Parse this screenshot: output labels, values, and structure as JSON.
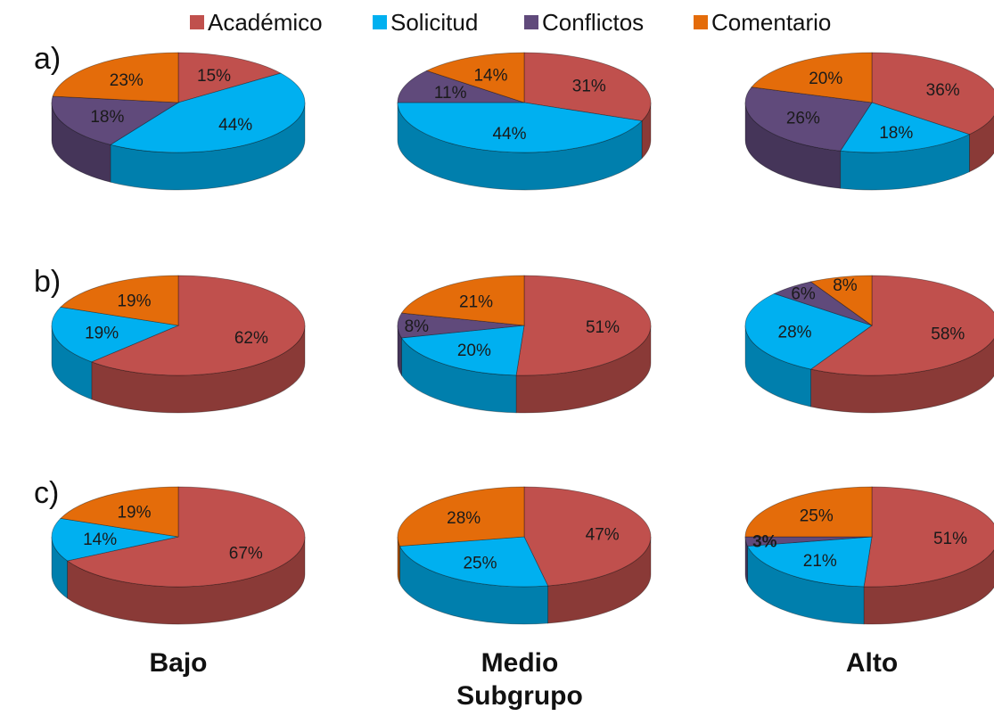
{
  "chart_data": {
    "type": "pie",
    "style": "3d-pie-grid",
    "legend": {
      "position": "top",
      "entries": [
        {
          "name": "Académico",
          "color": "#C0504D"
        },
        {
          "name": "Solicitud",
          "color": "#00B0F0"
        },
        {
          "name": "Conflictos",
          "color": "#604A7B"
        },
        {
          "name": "Comentario",
          "color": "#E46C0A"
        }
      ]
    },
    "rows": [
      {
        "label": "a)",
        "charts": [
          {
            "column": "Bajo",
            "slices": [
              {
                "series": "Académico",
                "value": 15,
                "label": "15%"
              },
              {
                "series": "Solicitud",
                "value": 44,
                "label": "44%"
              },
              {
                "series": "Conflictos",
                "value": 18,
                "label": "18%"
              },
              {
                "series": "Comentario",
                "value": 23,
                "label": "23%"
              }
            ]
          },
          {
            "column": "Medio",
            "slices": [
              {
                "series": "Académico",
                "value": 31,
                "label": "31%"
              },
              {
                "series": "Solicitud",
                "value": 44,
                "label": "44%"
              },
              {
                "series": "Conflictos",
                "value": 11,
                "label": "11%"
              },
              {
                "series": "Comentario",
                "value": 14,
                "label": "14%"
              }
            ]
          },
          {
            "column": "Alto",
            "slices": [
              {
                "series": "Académico",
                "value": 36,
                "label": "36%"
              },
              {
                "series": "Solicitud",
                "value": 18,
                "label": "18%"
              },
              {
                "series": "Conflictos",
                "value": 26,
                "label": "26%"
              },
              {
                "series": "Comentario",
                "value": 20,
                "label": "20%"
              }
            ]
          }
        ]
      },
      {
        "label": "b)",
        "charts": [
          {
            "column": "Bajo",
            "slices": [
              {
                "series": "Académico",
                "value": 62,
                "label": "62%"
              },
              {
                "series": "Solicitud",
                "value": 19,
                "label": "19%"
              },
              {
                "series": "Conflictos",
                "value": 0,
                "label": ""
              },
              {
                "series": "Comentario",
                "value": 19,
                "label": "19%"
              }
            ]
          },
          {
            "column": "Medio",
            "slices": [
              {
                "series": "Académico",
                "value": 51,
                "label": "51%"
              },
              {
                "series": "Solicitud",
                "value": 20,
                "label": "20%"
              },
              {
                "series": "Conflictos",
                "value": 8,
                "label": "8%"
              },
              {
                "series": "Comentario",
                "value": 21,
                "label": "21%"
              }
            ]
          },
          {
            "column": "Alto",
            "slices": [
              {
                "series": "Académico",
                "value": 58,
                "label": "58%"
              },
              {
                "series": "Solicitud",
                "value": 28,
                "label": "28%"
              },
              {
                "series": "Conflictos",
                "value": 6,
                "label": "6%"
              },
              {
                "series": "Comentario",
                "value": 8,
                "label": "8%"
              }
            ]
          }
        ]
      },
      {
        "label": "c)",
        "charts": [
          {
            "column": "Bajo",
            "slices": [
              {
                "series": "Académico",
                "value": 67,
                "label": "67%"
              },
              {
                "series": "Solicitud",
                "value": 14,
                "label": "14%"
              },
              {
                "series": "Conflictos",
                "value": 0,
                "label": ""
              },
              {
                "series": "Comentario",
                "value": 19,
                "label": "19%"
              }
            ]
          },
          {
            "column": "Medio",
            "slices": [
              {
                "series": "Académico",
                "value": 47,
                "label": "47%"
              },
              {
                "series": "Solicitud",
                "value": 25,
                "label": "25%"
              },
              {
                "series": "Conflictos",
                "value": 0,
                "label": ""
              },
              {
                "series": "Comentario",
                "value": 28,
                "label": "28%"
              }
            ]
          },
          {
            "column": "Alto",
            "slices": [
              {
                "series": "Académico",
                "value": 51,
                "label": "51%"
              },
              {
                "series": "Solicitud",
                "value": 21,
                "label": "21%"
              },
              {
                "series": "Conflictos",
                "value": 3,
                "label": "3%"
              },
              {
                "series": "Comentario",
                "value": 25,
                "label": "25%"
              }
            ]
          }
        ]
      }
    ],
    "column_labels": [
      "Bajo",
      "Medio",
      "Alto"
    ],
    "xlabel": "Subgrupo"
  }
}
